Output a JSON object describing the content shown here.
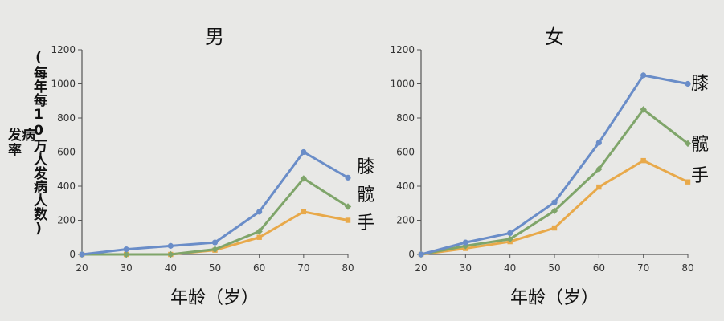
{
  "y_axis": {
    "label_main": "发病率",
    "label_unit": "(每年每10万人发病人数)"
  },
  "colors": {
    "knee": "#6a8dc8",
    "hip": "#7fa56a",
    "hand": "#e8a94a",
    "axis": "#555555",
    "background": "#e8e8e6"
  },
  "chart_data": [
    {
      "type": "line",
      "title": "男",
      "xlabel": "年龄（岁）",
      "ylabel": "发病率",
      "x": [
        20,
        30,
        40,
        50,
        60,
        70,
        80
      ],
      "xlim": [
        20,
        80
      ],
      "ylim": [
        0,
        1200
      ],
      "yticks": [
        0,
        200,
        400,
        600,
        800,
        1000,
        1200
      ],
      "grid": false,
      "series": [
        {
          "name": "膝",
          "values": [
            0,
            30,
            50,
            70,
            250,
            600,
            450
          ]
        },
        {
          "name": "髋",
          "values": [
            0,
            0,
            0,
            30,
            135,
            445,
            280
          ]
        },
        {
          "name": "手",
          "values": [
            0,
            0,
            0,
            25,
            100,
            250,
            200
          ]
        }
      ]
    },
    {
      "type": "line",
      "title": "女",
      "xlabel": "年龄（岁）",
      "ylabel": "发病率",
      "x": [
        20,
        30,
        40,
        50,
        60,
        70,
        80
      ],
      "xlim": [
        20,
        80
      ],
      "ylim": [
        0,
        1200
      ],
      "yticks": [
        0,
        200,
        400,
        600,
        800,
        1000,
        1200
      ],
      "grid": false,
      "series": [
        {
          "name": "膝",
          "values": [
            0,
            70,
            125,
            305,
            655,
            1050,
            1000
          ]
        },
        {
          "name": "髋",
          "values": [
            0,
            50,
            90,
            255,
            500,
            850,
            650
          ]
        },
        {
          "name": "手",
          "values": [
            0,
            35,
            75,
            155,
            395,
            550,
            425
          ]
        }
      ]
    }
  ]
}
